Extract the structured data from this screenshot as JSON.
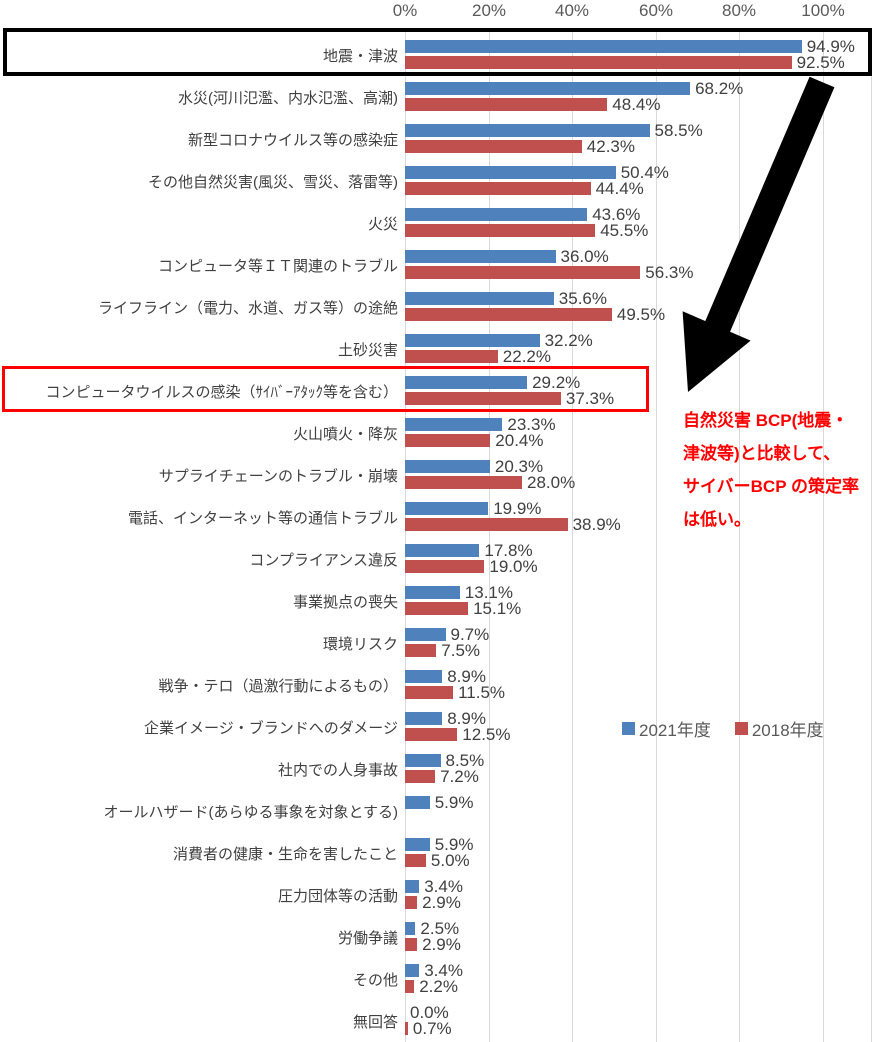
{
  "chart_data": {
    "type": "bar",
    "orientation": "horizontal",
    "title": "",
    "x_axis": {
      "ticks": [
        "0%",
        "20%",
        "40%",
        "60%",
        "80%",
        "100%"
      ],
      "min": 0,
      "max": 100,
      "unit": "%"
    },
    "grid": true,
    "legend_position": "right-middle",
    "categories": [
      "地震・津波",
      "水災(河川氾濫、内水氾濫、高潮)",
      "新型コロナウイルス等の感染症",
      "その他自然災害(風災、雪災、落雷等)",
      "火災",
      "コンピュータ等ＩＴ関連のトラブル",
      "ライフライン（電力、水道、ガス等）の途絶",
      "土砂災害",
      "コンピュータウイルスの感染（ｻｲﾊﾞｰｱﾀｯｸ等を含む）",
      "火山噴火・降灰",
      "サプライチェーンのトラブル・崩壊",
      "電話、インターネット等の通信トラブル",
      "コンプライアンス違反",
      "事業拠点の喪失",
      "環境リスク",
      "戦争・テロ（過激行動によるもの）",
      "企業イメージ・ブランドへのダメージ",
      "社内での人身事故",
      "オールハザード(あらゆる事象を対象とする)",
      "消費者の健康・生命を害したこと",
      "圧力団体等の活動",
      "労働争議",
      "その他",
      "無回答"
    ],
    "series": [
      {
        "name": "2021年度",
        "color": "#4F81BD",
        "values": [
          94.9,
          68.2,
          58.5,
          50.4,
          43.6,
          36.0,
          35.6,
          32.2,
          29.2,
          23.3,
          20.3,
          19.9,
          17.8,
          13.1,
          9.7,
          8.9,
          8.9,
          8.5,
          5.9,
          5.9,
          3.4,
          2.5,
          3.4,
          0.0
        ]
      },
      {
        "name": "2018年度",
        "color": "#C0504D",
        "values": [
          92.5,
          48.4,
          42.3,
          44.4,
          45.5,
          56.3,
          49.5,
          22.2,
          37.3,
          20.4,
          28.0,
          38.9,
          19.0,
          15.1,
          7.5,
          11.5,
          12.5,
          7.2,
          null,
          5.0,
          2.9,
          2.9,
          2.2,
          0.7
        ]
      }
    ]
  },
  "annotation": {
    "color": "#FF0000",
    "lines": [
      "自然災害 BCP(地震・",
      "津波等)と比較して、",
      "サイバーBCP の策定率",
      "は低い。"
    ]
  },
  "highlights": {
    "black_box_color": "#000000",
    "red_box_color": "#FF0000",
    "arrow_color": "#000000"
  }
}
